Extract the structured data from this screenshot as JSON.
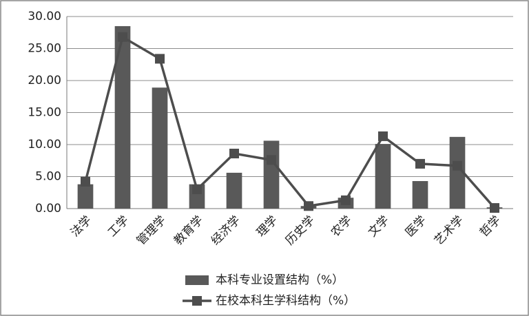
{
  "chart_data": {
    "type": "bar-line",
    "categories": [
      "法学",
      "工学",
      "管理学",
      "教育学",
      "经济学",
      "理学",
      "历史学",
      "农学",
      "文学",
      "医学",
      "艺术学",
      "哲学"
    ],
    "series": [
      {
        "name": "本科专业设置结构（%）",
        "type": "bar",
        "color": "#595959",
        "values": [
          3.8,
          28.5,
          18.9,
          3.8,
          5.6,
          10.6,
          0.4,
          1.7,
          10.1,
          4.3,
          11.2,
          0.2
        ]
      },
      {
        "name": "在校本科生学科结构（%）",
        "type": "line",
        "color": "#4d4d4d",
        "values": [
          4.2,
          26.8,
          23.4,
          3.0,
          8.6,
          7.6,
          0.4,
          1.3,
          11.3,
          7.0,
          6.7,
          0.1
        ]
      }
    ],
    "ylim": [
      0,
      30
    ],
    "yticks": [
      {
        "value": 0,
        "label": "0.00"
      },
      {
        "value": 5,
        "label": "5.00"
      },
      {
        "value": 10,
        "label": "10.00"
      },
      {
        "value": 15,
        "label": "15.00"
      },
      {
        "value": 20,
        "label": "20.00"
      },
      {
        "value": 25,
        "label": "25.00"
      },
      {
        "value": 30,
        "label": "30.00"
      }
    ],
    "grid": true,
    "legend": "bottom"
  }
}
